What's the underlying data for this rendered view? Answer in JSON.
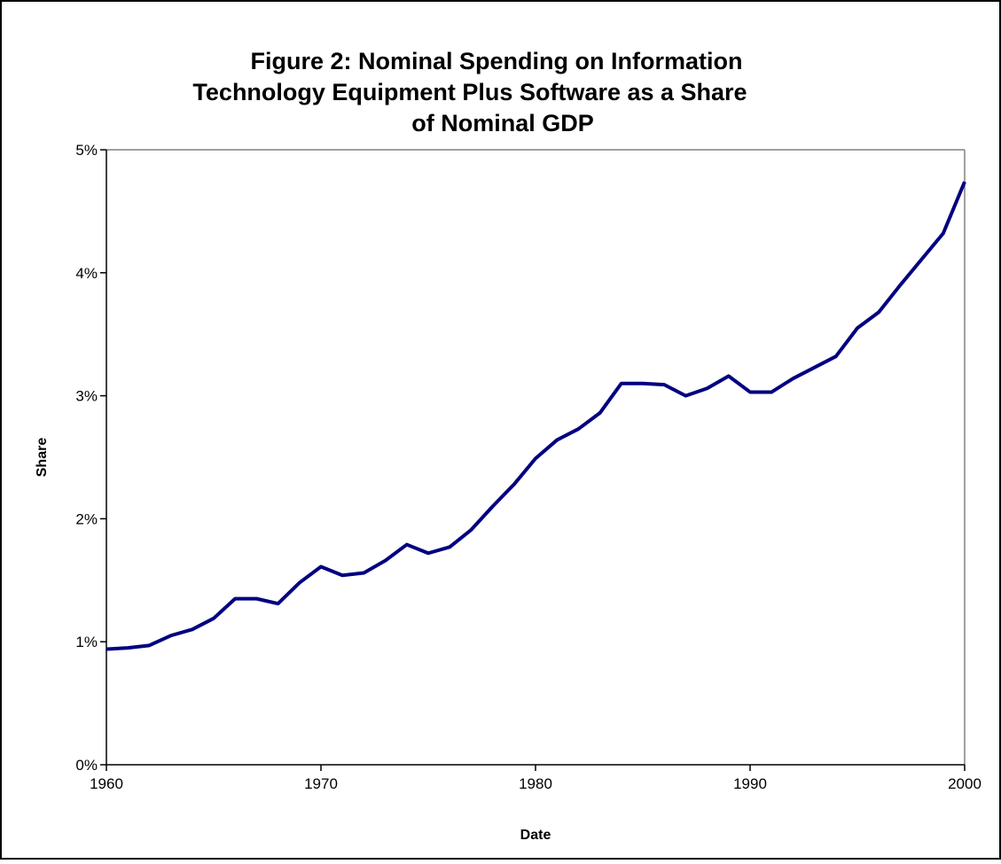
{
  "chart_data": {
    "type": "line",
    "title_lines": [
      "Figure 2: Nominal Spending on Information",
      "Technology Equipment Plus Software as a Share",
      "of Nominal GDP"
    ],
    "x_label": "Date",
    "y_label": "Share",
    "x": [
      1960,
      1961,
      1962,
      1963,
      1964,
      1965,
      1966,
      1967,
      1968,
      1969,
      1970,
      1971,
      1972,
      1973,
      1974,
      1975,
      1976,
      1977,
      1978,
      1979,
      1980,
      1981,
      1982,
      1983,
      1984,
      1985,
      1986,
      1987,
      1988,
      1989,
      1990,
      1991,
      1992,
      1993,
      1994,
      1995,
      1996,
      1997,
      1998,
      1999,
      2000
    ],
    "values": [
      0.94,
      0.95,
      0.97,
      1.05,
      1.1,
      1.19,
      1.35,
      1.35,
      1.31,
      1.48,
      1.61,
      1.54,
      1.56,
      1.66,
      1.79,
      1.72,
      1.77,
      1.91,
      2.1,
      2.28,
      2.49,
      2.64,
      2.73,
      2.86,
      3.1,
      3.1,
      3.09,
      3.0,
      3.06,
      3.16,
      3.03,
      3.03,
      3.14,
      3.23,
      3.32,
      3.55,
      3.68,
      3.9,
      4.11,
      4.32,
      4.74
    ],
    "color": "#000080",
    "xlim": [
      1960,
      2000
    ],
    "xticks": [
      1960,
      1970,
      1980,
      1990,
      2000
    ],
    "ylim": [
      0,
      5
    ],
    "yticks": [
      {
        "value": 0,
        "label": "0%"
      },
      {
        "value": 1,
        "label": "1%"
      },
      {
        "value": 2,
        "label": "2%"
      },
      {
        "value": 3,
        "label": "3%"
      },
      {
        "value": 4,
        "label": "4%"
      },
      {
        "value": 5,
        "label": "5%"
      }
    ],
    "grid": false
  }
}
